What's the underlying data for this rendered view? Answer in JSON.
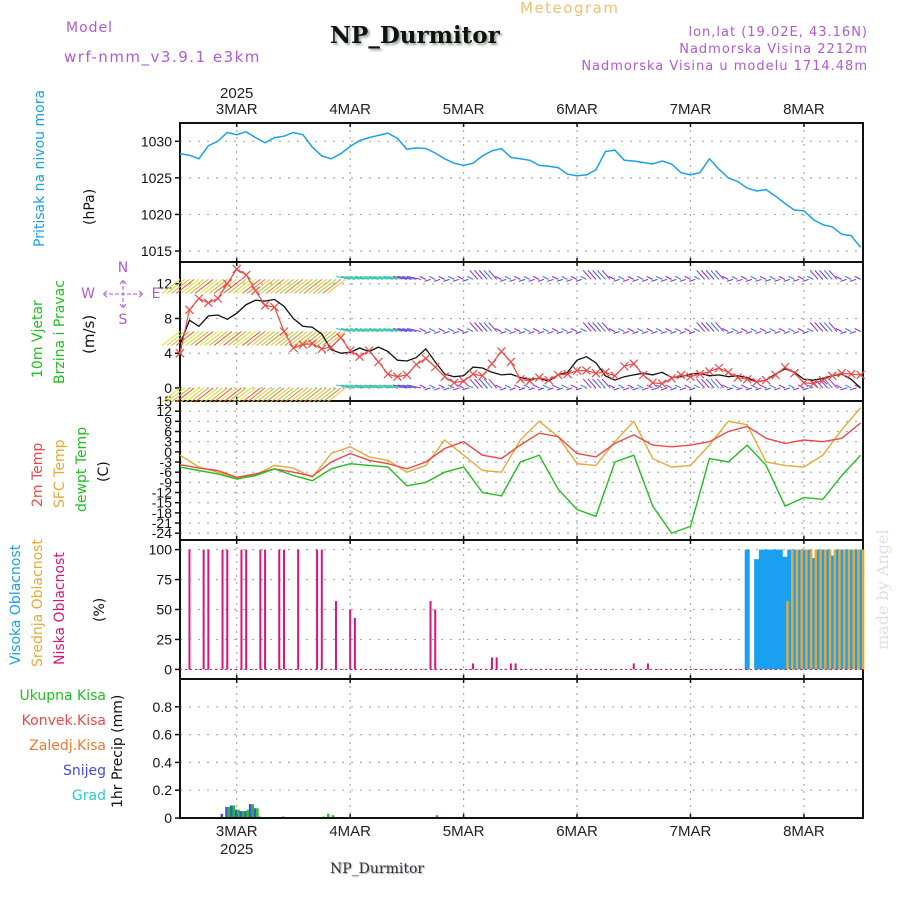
{
  "header": {
    "model_label": "Model",
    "model_version": "wrf-nmm_v3.9.1 e3km",
    "title": "NP_Durmitor",
    "subtitle": "Meteogram",
    "coords": "lon,lat (19.02E, 43.16N)",
    "elevation": "Nadmorska Visina 2212m",
    "model_elevation": "Nadmorska Visina u modelu 1714.48m"
  },
  "footer": {
    "station": "NP_Durmitor",
    "watermark": "made by Angel"
  },
  "time_axis": {
    "year": "2025",
    "days": [
      "3MAR",
      "4MAR",
      "5MAR",
      "6MAR",
      "7MAR",
      "8MAR"
    ],
    "start_hour_offset": -12,
    "end_hour_offset": 132.5
  },
  "compass": {
    "n": "N",
    "s": "S",
    "e": "E",
    "w": "W"
  },
  "chart_data": [
    {
      "id": "pressure",
      "type": "line",
      "title": "Pritisak na nivou mora",
      "ylabel": "(hPa)",
      "ylim": [
        1013.5,
        1032.5
      ],
      "yticks": [
        1015,
        1020,
        1025,
        1030
      ],
      "grid": true,
      "colors": {
        "label": "#1aa0f0",
        "line": "#1aa0f0"
      },
      "series": [
        {
          "name": "MSLP",
          "x_hours": [
            -12,
            -10,
            -8,
            -6,
            -4,
            -2,
            0,
            2,
            4,
            6,
            8,
            10,
            12,
            14,
            16,
            18,
            20,
            22,
            24,
            26,
            28,
            30,
            32,
            34,
            36,
            38,
            40,
            42,
            44,
            46,
            48,
            50,
            52,
            54,
            56,
            58,
            60,
            62,
            64,
            66,
            68,
            70,
            72,
            74,
            76,
            78,
            80,
            82,
            84,
            86,
            88,
            90,
            92,
            94,
            96,
            98,
            100,
            102,
            104,
            106,
            108,
            110,
            112,
            114,
            116,
            118,
            120,
            122,
            124,
            126,
            128,
            130,
            132
          ],
          "values": [
            1028.3,
            1028.1,
            1027.6,
            1029.4,
            1030.0,
            1031.2,
            1030.9,
            1031.3,
            1030.5,
            1029.8,
            1030.5,
            1030.7,
            1031.2,
            1030.9,
            1029.2,
            1028.0,
            1027.6,
            1028.3,
            1029.3,
            1030.1,
            1030.5,
            1030.8,
            1031.1,
            1030.4,
            1028.9,
            1029.1,
            1029.0,
            1028.4,
            1027.6,
            1027.0,
            1026.7,
            1027.0,
            1028.0,
            1028.7,
            1029.0,
            1027.8,
            1027.6,
            1027.4,
            1026.7,
            1026.6,
            1026.4,
            1025.5,
            1025.3,
            1025.4,
            1026.1,
            1028.6,
            1028.8,
            1027.4,
            1027.3,
            1027.1,
            1026.9,
            1027.3,
            1026.9,
            1025.7,
            1025.4,
            1025.7,
            1027.6,
            1026.2,
            1025.0,
            1024.5,
            1023.6,
            1023.2,
            1023.4,
            1022.5,
            1021.5,
            1020.6,
            1020.5,
            1019.3,
            1018.6,
            1018.3,
            1017.3,
            1017.1,
            1015.5
          ]
        }
      ]
    },
    {
      "id": "wind",
      "type": "line",
      "title": "10m Vjetar Brzina i Pravac",
      "ylabel": "(m/s)",
      "ylim": [
        -1.5,
        14.5
      ],
      "yticks": [
        0,
        4,
        8,
        12
      ],
      "grid": true,
      "colors": {
        "label1": "#20c020",
        "label2": "#20c020",
        "speed": "#111111",
        "gust": "#f04848"
      },
      "barb_rows": [
        0,
        6.5,
        12.5
      ],
      "series": [
        {
          "name": "wind speed",
          "x_hours": [
            -12,
            -10,
            -8,
            -6,
            -4,
            -2,
            0,
            2,
            4,
            6,
            8,
            10,
            12,
            14,
            16,
            18,
            20,
            22,
            24,
            26,
            28,
            30,
            32,
            34,
            36,
            38,
            40,
            42,
            44,
            46,
            48,
            50,
            52,
            54,
            56,
            58,
            60,
            62,
            64,
            66,
            68,
            70,
            72,
            74,
            76,
            78,
            80,
            82,
            84,
            86,
            88,
            90,
            92,
            94,
            96,
            98,
            100,
            102,
            104,
            106,
            108,
            110,
            112,
            114,
            116,
            118,
            120,
            122,
            124,
            126,
            128,
            130,
            132
          ],
          "values": [
            5.0,
            7.8,
            7.1,
            8.3,
            8.4,
            7.9,
            8.6,
            9.6,
            10.1,
            10.0,
            10.2,
            9.4,
            8.0,
            7.1,
            7.0,
            6.2,
            4.4,
            4.0,
            4.1,
            4.6,
            4.2,
            4.7,
            4.2,
            3.2,
            3.1,
            3.5,
            4.5,
            3.0,
            1.6,
            1.3,
            1.4,
            2.4,
            2.3,
            1.8,
            1.5,
            1.6,
            1.2,
            1.0,
            1.1,
            0.8,
            1.5,
            1.8,
            3.2,
            3.6,
            2.9,
            1.4,
            0.9,
            1.3,
            1.5,
            1.7,
            1.5,
            1.8,
            1.2,
            1.3,
            1.6,
            1.7,
            1.4,
            1.5,
            1.3,
            1.4,
            1.2,
            0.7,
            0.9,
            1.6,
            2.2,
            1.8,
            1.0,
            0.9,
            1.1,
            1.4,
            1.6,
            1.0,
            0.0
          ]
        },
        {
          "name": "wind gust",
          "x_hours": [
            -12,
            -10,
            -8,
            -6,
            -4,
            -2,
            0,
            2,
            4,
            6,
            8,
            10,
            12,
            14,
            16,
            18,
            20,
            22,
            24,
            26,
            28,
            30,
            32,
            34,
            36,
            38,
            40,
            42,
            44,
            46,
            48,
            50,
            52,
            54,
            56,
            58,
            60,
            62,
            64,
            66,
            68,
            70,
            72,
            74,
            76,
            78,
            80,
            82,
            84,
            86,
            88,
            90,
            92,
            94,
            96,
            98,
            100,
            102,
            104,
            106,
            108,
            110,
            112,
            114,
            116,
            118,
            120,
            122,
            124,
            126,
            128,
            130,
            132
          ],
          "values": [
            4.0,
            9.0,
            10.3,
            9.8,
            10.3,
            12.0,
            13.7,
            13.0,
            11.2,
            9.5,
            9.3,
            6.5,
            4.6,
            5.0,
            5.1,
            4.5,
            4.7,
            5.8,
            4.3,
            3.6,
            4.3,
            3.0,
            1.6,
            1.3,
            1.5,
            2.7,
            3.4,
            2.4,
            1.3,
            0.6,
            0.8,
            1.6,
            1.4,
            2.8,
            4.2,
            3.0,
            1.0,
            0.8,
            1.2,
            0.9,
            1.5,
            1.6,
            2.0,
            2.0,
            1.7,
            1.8,
            1.4,
            2.5,
            2.8,
            1.5,
            0.6,
            0.5,
            1.1,
            1.5,
            1.3,
            1.6,
            1.9,
            2.3,
            1.8,
            1.2,
            1.0,
            0.7,
            0.9,
            1.5,
            2.4,
            1.7,
            0.6,
            0.5,
            0.9,
            1.4,
            1.7,
            1.6,
            1.5
          ]
        }
      ]
    },
    {
      "id": "temperature",
      "type": "line",
      "title": "2m Temp / SFC Temp / dewpt Temp",
      "ylabel": "(C)",
      "ylim": [
        -26,
        15
      ],
      "yticks": [
        15,
        12,
        9,
        6,
        3,
        0,
        -3,
        -6,
        -9,
        -12,
        -15,
        -18,
        -21,
        -24
      ],
      "grid": true,
      "colors": {
        "t2m": "#f04848",
        "sfc": "#e8a838",
        "dewpt": "#20c020"
      },
      "legend": [
        "2m Temp",
        "SFC Temp",
        "dewpt Temp"
      ],
      "series": [
        {
          "name": "2m Temp",
          "x_hours": [
            -12,
            -8,
            -4,
            0,
            4,
            8,
            12,
            16,
            20,
            24,
            28,
            32,
            36,
            40,
            44,
            48,
            52,
            56,
            60,
            64,
            68,
            72,
            76,
            80,
            84,
            88,
            92,
            96,
            100,
            104,
            108,
            112,
            116,
            120,
            124,
            128,
            132
          ],
          "values": [
            -3.8,
            -4.8,
            -5.5,
            -7.5,
            -6.5,
            -5.0,
            -6.0,
            -7.2,
            -3.0,
            -0.5,
            -2.5,
            -3.5,
            -5.0,
            -3.0,
            1.0,
            3.0,
            -1.0,
            -2.0,
            2.0,
            5.5,
            4.5,
            -0.5,
            -1.5,
            2.5,
            5.0,
            2.0,
            1.5,
            2.0,
            3.0,
            6.0,
            7.5,
            4.0,
            2.5,
            3.5,
            3.0,
            4.0,
            8.5
          ]
        },
        {
          "name": "SFC Temp",
          "x_hours": [
            -12,
            -8,
            -4,
            0,
            4,
            8,
            12,
            16,
            20,
            24,
            28,
            32,
            36,
            40,
            44,
            48,
            52,
            56,
            60,
            64,
            68,
            72,
            76,
            80,
            84,
            88,
            92,
            96,
            100,
            104,
            108,
            112,
            116,
            120,
            124,
            128,
            132
          ],
          "values": [
            -1.0,
            -4.5,
            -6.0,
            -7.8,
            -6.8,
            -4.0,
            -4.8,
            -7.5,
            -0.5,
            1.5,
            -1.5,
            -2.5,
            -6.0,
            -4.0,
            3.5,
            -1.0,
            -5.5,
            -6.0,
            3.5,
            9.0,
            4.5,
            -3.5,
            -4.0,
            3.0,
            9.0,
            -2.0,
            -4.5,
            -4.0,
            2.0,
            9.0,
            8.0,
            -3.0,
            -4.0,
            -4.5,
            -1.0,
            6.5,
            13.0
          ]
        },
        {
          "name": "dewpt Temp",
          "x_hours": [
            -12,
            -8,
            -4,
            0,
            4,
            8,
            12,
            16,
            20,
            24,
            28,
            32,
            36,
            40,
            44,
            48,
            52,
            56,
            60,
            64,
            68,
            72,
            76,
            80,
            84,
            88,
            92,
            96,
            100,
            104,
            108,
            112,
            116,
            120,
            124,
            128,
            132
          ],
          "values": [
            -4.5,
            -5.5,
            -6.5,
            -8.0,
            -7.0,
            -5.0,
            -7.0,
            -8.5,
            -5.0,
            -3.5,
            -4.0,
            -4.5,
            -10.0,
            -9.0,
            -6.0,
            -4.5,
            -12.0,
            -13.0,
            -3.0,
            -1.0,
            -11.0,
            -17.0,
            -19.0,
            -3.0,
            -1.0,
            -16.0,
            -24.0,
            -22.0,
            -2.0,
            -3.0,
            2.0,
            -4.0,
            -16.0,
            -13.5,
            -14.0,
            -7.0,
            -1.0
          ]
        }
      ]
    },
    {
      "id": "clouds",
      "type": "bar",
      "title": "Visoka / Srednja / Niska Oblacnost",
      "ylabel": "(%)",
      "ylim": [
        -8,
        108
      ],
      "yticks": [
        0,
        25,
        50,
        75,
        100
      ],
      "grid": true,
      "colors": {
        "high": "#1aa0f0",
        "mid": "#e8a838",
        "low": "#d8167a"
      },
      "legend": [
        "Visoka Oblacnost",
        "Srednja Oblacnost",
        "Niska Oblacnost"
      ],
      "series": [
        {
          "name": "Niska Oblacnost",
          "x_hours": [
            -10,
            -7,
            -6,
            -3,
            -2,
            1,
            2,
            5,
            6,
            9,
            10,
            13,
            17,
            18,
            21,
            24,
            25,
            41,
            42,
            50,
            54,
            55,
            58,
            59,
            84,
            87
          ],
          "values": [
            100,
            100,
            100,
            100,
            100,
            100,
            100,
            100,
            100,
            100,
            100,
            100,
            100,
            100,
            57,
            50,
            43,
            57,
            50,
            5,
            10,
            10,
            5,
            5,
            5,
            5
          ]
        },
        {
          "name": "Visoka Oblacnost",
          "x_hours": [
            108,
            110,
            111,
            112,
            113,
            114,
            115,
            116,
            117,
            118,
            119,
            120,
            121,
            122,
            123,
            124,
            125,
            126,
            127,
            128,
            129,
            130,
            131,
            132
          ],
          "values": [
            100,
            92,
            100,
            100,
            100,
            100,
            100,
            94,
            100,
            100,
            100,
            100,
            100,
            93,
            100,
            100,
            100,
            95,
            100,
            100,
            100,
            100,
            100,
            100
          ]
        },
        {
          "name": "Srednja Oblacnost",
          "x_hours": [
            116,
            117,
            118,
            119,
            120,
            121,
            122,
            123,
            124,
            125,
            126,
            127,
            128,
            129,
            130,
            131,
            132
          ],
          "values": [
            57,
            100,
            100,
            100,
            100,
            100,
            100,
            100,
            100,
            100,
            100,
            100,
            100,
            100,
            100,
            100,
            100
          ]
        }
      ]
    },
    {
      "id": "precip",
      "type": "bar",
      "title": "1hr Precip",
      "ylabel": "1hr Precip (mm)",
      "ylim": [
        0,
        1.0
      ],
      "yticks": [
        0,
        0.2,
        0.4,
        0.6,
        0.8
      ],
      "grid": true,
      "colors": {
        "total": "#20c020",
        "convective": "#f04848",
        "freezing": "#f07830",
        "snow": "#4848e8",
        "graupel": "#30c8c8"
      },
      "legend": [
        "Ukupna Kisa",
        "Konvek.Kisa",
        "Zaledj.Kisa",
        "Snijeg",
        "Grad"
      ],
      "series": [
        {
          "name": "Snijeg",
          "x_hours": [
            -3,
            -2,
            -1,
            0,
            1,
            2,
            3,
            4,
            5,
            6,
            10
          ],
          "values": [
            0.03,
            0.08,
            0.09,
            0.06,
            0.05,
            0.05,
            0.1,
            0.07,
            0.01,
            0.0,
            0.01
          ]
        },
        {
          "name": "Ukupna Kisa",
          "x_hours": [
            -2,
            -1,
            0,
            1,
            2,
            3,
            4,
            5,
            6,
            10,
            18,
            19,
            20,
            42
          ],
          "values": [
            0.08,
            0.09,
            0.06,
            0.05,
            0.06,
            0.1,
            0.07,
            0.0,
            0.0,
            0.0,
            0.01,
            0.03,
            0.02,
            0.02
          ]
        }
      ]
    }
  ]
}
